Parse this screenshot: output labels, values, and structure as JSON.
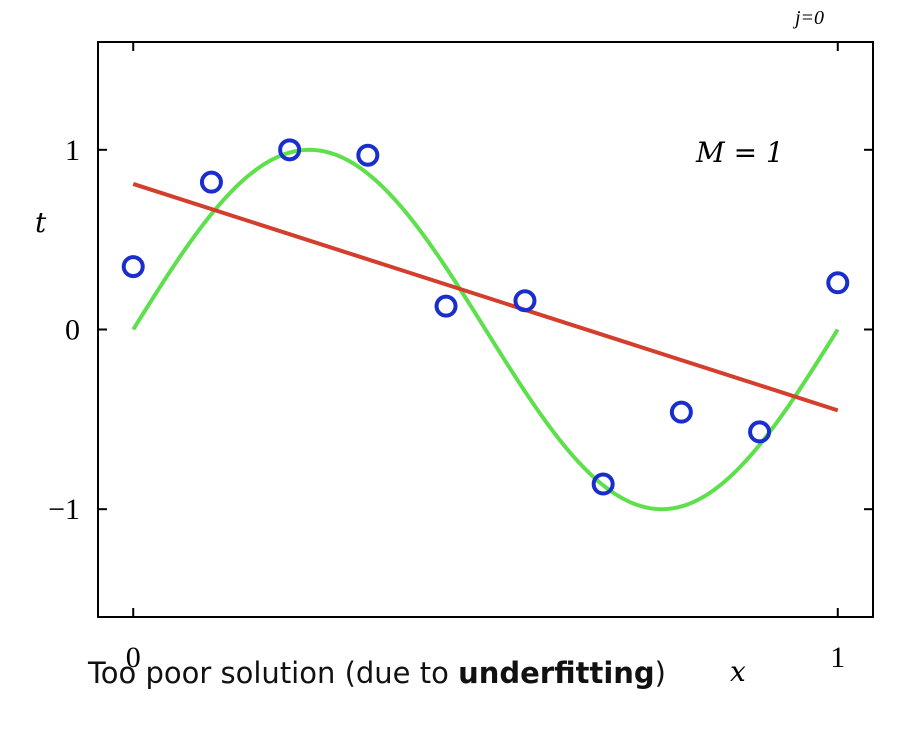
{
  "top_fragment": "j=0",
  "caption": {
    "prefix": "Too poor solution (due to ",
    "bold": "underfitting",
    "suffix": ")"
  },
  "chart_data": {
    "type": "scatter",
    "xlabel": "x",
    "ylabel": "t",
    "xlim": [
      -0.05,
      1.05
    ],
    "ylim": [
      -1.6,
      1.6
    ],
    "xticks": [
      {
        "value": 0,
        "label": "0"
      },
      {
        "value": 1,
        "label": "1"
      }
    ],
    "yticks": [
      {
        "value": -1,
        "label": "−1"
      },
      {
        "value": 0,
        "label": "0"
      },
      {
        "value": 1,
        "label": "1"
      }
    ],
    "annotation": "M = 1",
    "grid": false,
    "points": {
      "color": "#1a2ecc",
      "x": [
        0.0,
        0.111,
        0.222,
        0.333,
        0.444,
        0.556,
        0.667,
        0.778,
        0.889,
        1.0
      ],
      "y": [
        0.35,
        0.82,
        1.0,
        0.97,
        0.13,
        0.16,
        -0.86,
        -0.46,
        -0.57,
        0.26
      ]
    },
    "curve": {
      "color": "#5ee04c",
      "function": "sin(2*pi*x)",
      "x_range": [
        0,
        1
      ]
    },
    "fit_line": {
      "color": "#d43e2c",
      "x": [
        0,
        1
      ],
      "y": [
        0.81,
        -0.45
      ]
    }
  }
}
